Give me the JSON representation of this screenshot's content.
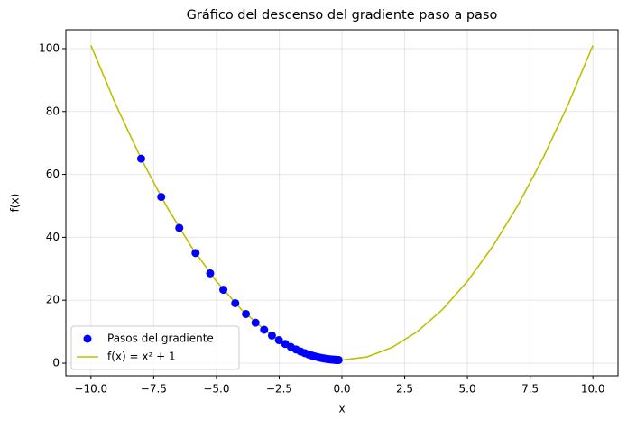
{
  "chart_data": {
    "type": "line",
    "title": "Gráfico del descenso del gradiente paso a paso",
    "xlabel": "x",
    "ylabel": "f(x)",
    "xlim": [
      -11,
      11
    ],
    "ylim": [
      -4,
      106
    ],
    "xticks": [
      {
        "value": -10,
        "label": "−10.0"
      },
      {
        "value": -7.5,
        "label": "−7.5"
      },
      {
        "value": -5,
        "label": "−5.0"
      },
      {
        "value": -2.5,
        "label": "−2.5"
      },
      {
        "value": 0,
        "label": "0.0"
      },
      2.5,
      {
        "value": 5,
        "label": "5.0"
      },
      7.5,
      {
        "value": 10,
        "label": "10.0"
      }
    ],
    "yticks": [
      0,
      20,
      40,
      60,
      80,
      100
    ],
    "grid": true,
    "legend": "lower left",
    "series": [
      {
        "name": "Pasos del gradiente",
        "type": "scatter",
        "color": "#0000ff",
        "x": [
          -8,
          -7.2,
          -6.48,
          -5.832,
          -5.249,
          -4.724,
          -4.251,
          -3.826,
          -3.444,
          -3.099,
          -2.789,
          -2.51,
          -2.259,
          -2.033,
          -1.83,
          -1.647,
          -1.482,
          -1.334,
          -1.201,
          -1.081,
          -0.973,
          -0.875,
          -0.788,
          -0.709,
          -0.638,
          -0.574,
          -0.517,
          -0.465,
          -0.419,
          -0.377,
          -0.339,
          -0.305,
          -0.275,
          -0.247,
          -0.223,
          -0.2,
          -0.18,
          -0.162,
          -0.146,
          -0.131
        ],
        "values": [
          65,
          52.84,
          42.99,
          35.01,
          28.55,
          23.32,
          19.07,
          15.64,
          12.86,
          10.61,
          8.78,
          7.3,
          6.1,
          5.13,
          4.35,
          3.71,
          3.2,
          2.78,
          2.44,
          2.17,
          1.95,
          1.77,
          1.62,
          1.5,
          1.41,
          1.33,
          1.27,
          1.22,
          1.18,
          1.14,
          1.12,
          1.09,
          1.08,
          1.06,
          1.05,
          1.04,
          1.03,
          1.03,
          1.02,
          1.02
        ]
      },
      {
        "name": "f(x) = x² + 1",
        "type": "line",
        "color": "#bfbf00",
        "x": [
          -10,
          -9,
          -8,
          -7,
          -6,
          -5,
          -4,
          -3,
          -2,
          -1,
          0,
          1,
          2,
          3,
          4,
          5,
          6,
          7,
          8,
          9,
          10
        ],
        "values": [
          101,
          82,
          65,
          50,
          37,
          26,
          17,
          10,
          5,
          2,
          1,
          2,
          5,
          10,
          17,
          26,
          37,
          50,
          65,
          82,
          101
        ]
      }
    ]
  }
}
